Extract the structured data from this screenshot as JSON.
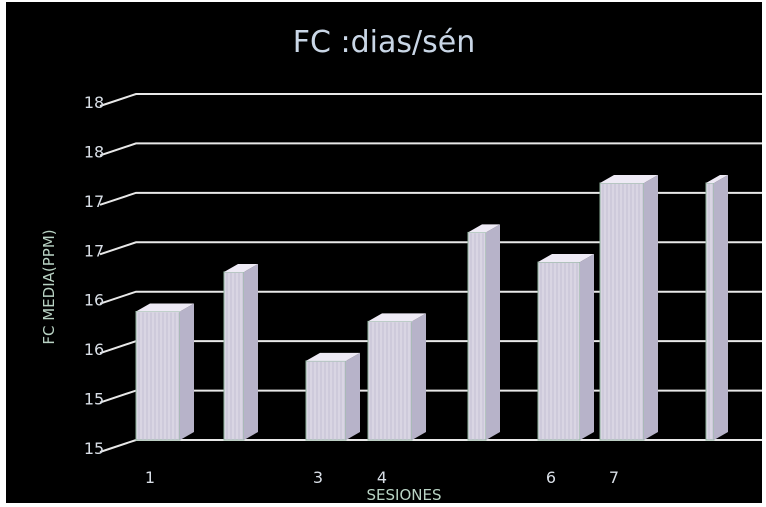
{
  "chart_data": {
    "type": "bar",
    "title": "FC :dias/sén",
    "xlabel": "SESIONES",
    "ylabel": "FC MEDIA(PPM)",
    "y_tick_labels": [
      "15",
      "15",
      "16",
      "16",
      "17",
      "17",
      "18",
      "18"
    ],
    "ylim": [
      150,
      185
    ],
    "grid": true,
    "legend": "none",
    "categories": [
      "1",
      "",
      "3",
      "4",
      "",
      "6",
      "7",
      ""
    ],
    "values": [
      163,
      167,
      158,
      162,
      171,
      168,
      176,
      176
    ],
    "colors": {
      "background": "#000000",
      "bar_face": "#d9d5e3",
      "bar_side": "#b7b3c9",
      "bar_top": "#eeeaf5",
      "grid": "#e8e8e8"
    }
  }
}
